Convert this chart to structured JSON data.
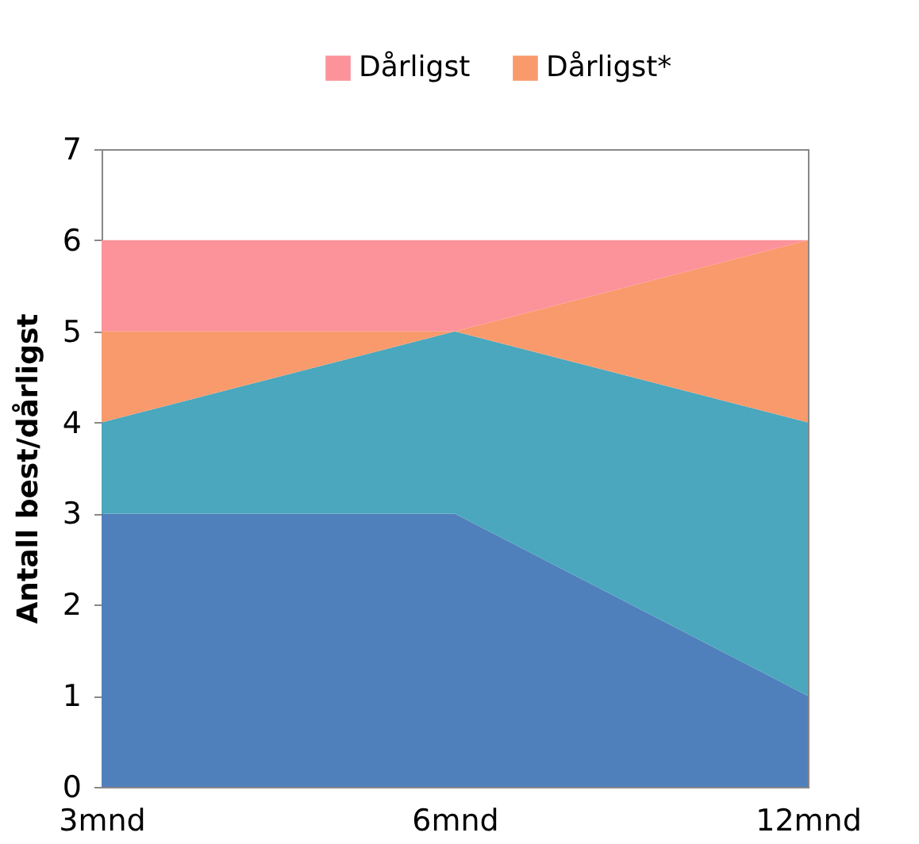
{
  "chart_data": {
    "type": "area",
    "stacked": true,
    "categories": [
      "3mnd",
      "6mnd",
      "12mnd"
    ],
    "series": [
      {
        "color": "#5080bb",
        "values": [
          3,
          3,
          1
        ]
      },
      {
        "color": "#4aa7bd",
        "values": [
          1,
          2,
          3
        ]
      },
      {
        "name": "Dårligst*",
        "color": "#f99a6c",
        "values": [
          1,
          0,
          2
        ]
      },
      {
        "name": "Dårligst",
        "color": "#fc929a",
        "values": [
          1,
          1,
          0
        ]
      }
    ],
    "ylabel": "Antall best/dårligst",
    "ylim": [
      0,
      7
    ],
    "yticks": [
      0,
      1,
      2,
      3,
      4,
      5,
      6,
      7
    ],
    "grid": false,
    "legend": "top right"
  }
}
